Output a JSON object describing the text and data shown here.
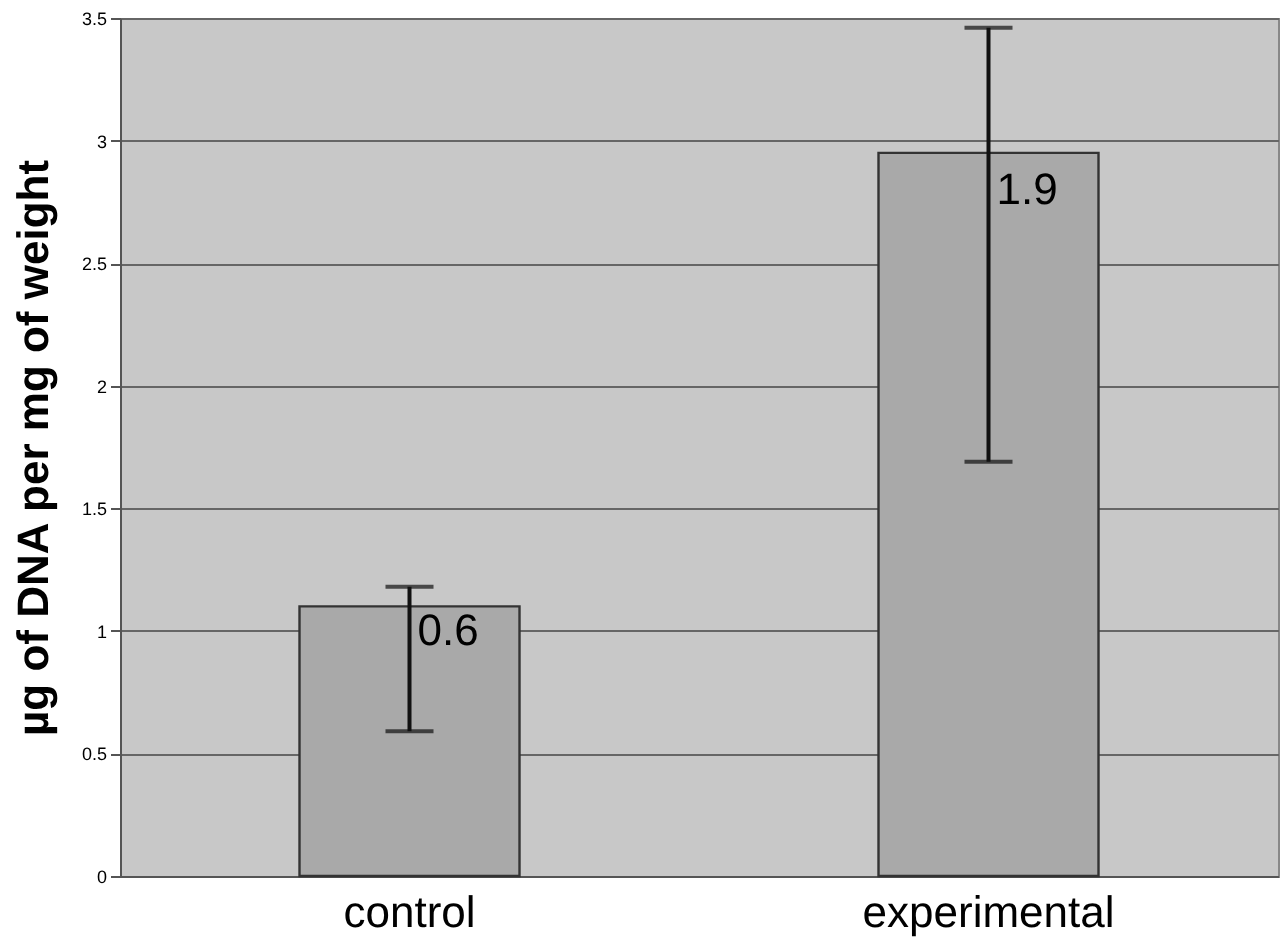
{
  "chart_data": {
    "type": "bar",
    "ylabel": "µg of DNA per mg of weight",
    "categories": [
      "control",
      "experimental"
    ],
    "values": [
      1.1,
      2.95
    ],
    "errors": [
      [
        0.59,
        1.18
      ],
      [
        1.69,
        3.46
      ]
    ],
    "annotations": [
      {
        "text": "0.6",
        "x": "control",
        "y": 1.0
      },
      {
        "text": "1.9",
        "x": "experimental",
        "y": 2.8
      }
    ],
    "color": "#a9a9a9",
    "ylim": [
      0,
      3.5
    ],
    "yticks": [
      0,
      0.5,
      1,
      1.5,
      2,
      2.5,
      3,
      3.5
    ],
    "grid": "y"
  }
}
